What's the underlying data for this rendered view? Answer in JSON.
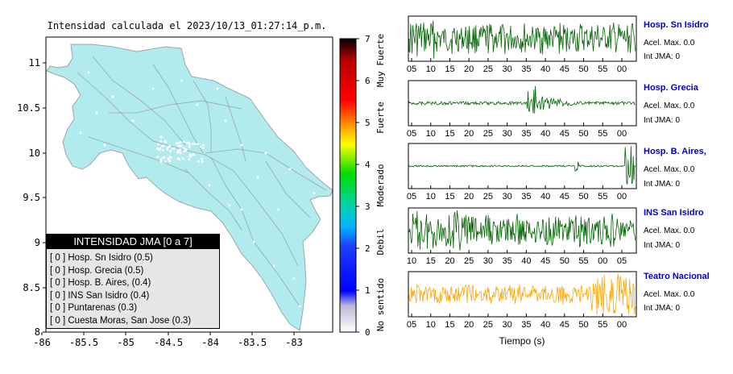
{
  "map": {
    "title": "Intensidad calculada el 2023/10/13_01:27:14_p.m.",
    "x_ticks": [
      "-86",
      "-85.5",
      "-85",
      "-84.5",
      "-84",
      "-83.5",
      "-83"
    ],
    "y_ticks": [
      "11",
      "10.5",
      "10",
      "9.5",
      "9",
      "8.5",
      "8"
    ],
    "land_color": "#b2ebee",
    "legend": {
      "title": "INTENSIDAD JMA [0 a 7]",
      "items": [
        "[ 0 ]  Hosp. Sn Isidro (0.5)",
        "[ 0 ]  Hosp. Grecia (0.5)",
        "[ 0 ]  Hosp. B. Aires, (0.4)",
        "[ 0 ]  INS San Isidro (0.4)",
        "[ 0 ]  Puntarenas (0.3)",
        "[ 0 ]  Cuesta Moras, San Jose (0.3)"
      ]
    }
  },
  "colorbar": {
    "ticks": [
      "0",
      "1",
      "2",
      "3",
      "4",
      "5",
      "6",
      "7"
    ],
    "labels": [
      "No sentido",
      "Debil",
      "Moderado",
      "Fuerte",
      "Muy Fuerte"
    ]
  },
  "waveforms": {
    "xlabel": "Tiempo (s)",
    "stations": [
      {
        "name": "Hosp. Sn Isidro",
        "accel": "Acel. Max. 0.0",
        "int": "Int JMA: 0",
        "color": "#006400",
        "ticks": [
          "05",
          "10",
          "15",
          "20",
          "25",
          "30",
          "35",
          "40",
          "45",
          "50",
          "55",
          "00"
        ]
      },
      {
        "name": "Hosp. Grecia",
        "accel": "Acel. Max. 0.0",
        "int": "Int JMA: 0",
        "color": "#006400",
        "ticks": [
          "05",
          "10",
          "15",
          "20",
          "25",
          "30",
          "35",
          "40",
          "45",
          "50",
          "55",
          "00"
        ]
      },
      {
        "name": "Hosp. B. Aires,",
        "accel": "Acel. Max. 0.0",
        "int": "Int JMA: 0",
        "color": "#006400",
        "ticks": [
          "05",
          "10",
          "15",
          "20",
          "25",
          "30",
          "35",
          "40",
          "45",
          "50",
          "55",
          "00"
        ]
      },
      {
        "name": "INS San Isidro",
        "accel": "Acel. Max. 0.0",
        "int": "Int JMA: 0",
        "color": "#006400",
        "ticks": [
          "10",
          "15",
          "20",
          "25",
          "30",
          "35",
          "40",
          "45",
          "50",
          "55",
          "00",
          "05"
        ]
      },
      {
        "name": "Teatro Nacional",
        "accel": "Acel. Max. 0.0",
        "int": "Int JMA: 0",
        "color": "#ffa500",
        "ticks": [
          "05",
          "10",
          "15",
          "20",
          "25",
          "30",
          "35",
          "40",
          "45",
          "50",
          "55",
          "00"
        ]
      }
    ]
  },
  "chart_data": {
    "type": "scatter",
    "title": "Intensidad calculada el 2023/10/13_01:27:14_p.m.",
    "xlim": [
      -86,
      -82.6
    ],
    "ylim": [
      8,
      11.3
    ],
    "colorbar_range": [
      0,
      7
    ],
    "stations": [
      {
        "name": "Hosp. Sn Isidro",
        "intensity": 0.5
      },
      {
        "name": "Hosp. Grecia",
        "intensity": 0.5
      },
      {
        "name": "Hosp. B. Aires,",
        "intensity": 0.4
      },
      {
        "name": "INS San Isidro",
        "intensity": 0.4
      },
      {
        "name": "Puntarenas",
        "intensity": 0.3
      },
      {
        "name": "Cuesta Moras, San Jose",
        "intensity": 0.3
      }
    ]
  }
}
